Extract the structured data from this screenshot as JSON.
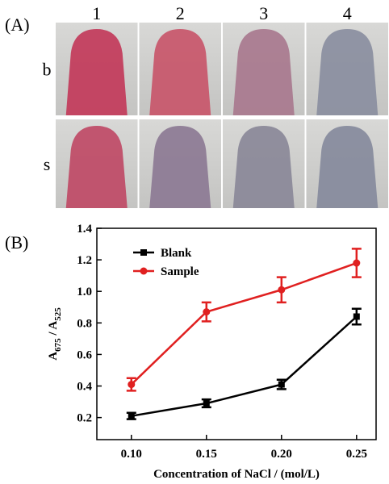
{
  "panel_a": {
    "label": "(A)",
    "columns": [
      "1",
      "2",
      "3",
      "4"
    ],
    "rows": [
      "b",
      "s"
    ]
  },
  "chart_data": {
    "type": "line",
    "panel_label": "(B)",
    "xlabel": "Concentration of NaCl / (mol/L)",
    "ylabel": {
      "a1": "A",
      "sub1": "675",
      "mid": " / A",
      "sub2": "525"
    },
    "x": [
      0.1,
      0.15,
      0.2,
      0.25
    ],
    "series": [
      {
        "name": "Blank",
        "color": "#000000",
        "marker": "square",
        "values": [
          0.21,
          0.29,
          0.41,
          0.84
        ],
        "errors": [
          0.02,
          0.025,
          0.03,
          0.05
        ]
      },
      {
        "name": "Sample",
        "color": "#e02020",
        "marker": "circle",
        "values": [
          0.41,
          0.87,
          1.01,
          1.18
        ],
        "errors": [
          0.04,
          0.06,
          0.08,
          0.09
        ]
      }
    ],
    "xlim": [
      0.077,
      0.263
    ],
    "xticks": [
      {
        "value": 0.1,
        "label": "0.10"
      },
      {
        "value": 0.15,
        "label": "0.15"
      },
      {
        "value": 0.2,
        "label": "0.20"
      },
      {
        "value": 0.25,
        "label": "0.25"
      }
    ],
    "ylim": [
      0.06,
      1.4
    ],
    "yticks": [
      {
        "value": 0.2,
        "label": "0.2"
      },
      {
        "value": 0.4,
        "label": "0.4"
      },
      {
        "value": 0.6,
        "label": "0.6"
      },
      {
        "value": 0.8,
        "label": "0.8"
      },
      {
        "value": 1.0,
        "label": "1.0"
      },
      {
        "value": 1.2,
        "label": "1.2"
      },
      {
        "value": 1.4,
        "label": "1.4"
      }
    ],
    "legend": "upper left"
  }
}
